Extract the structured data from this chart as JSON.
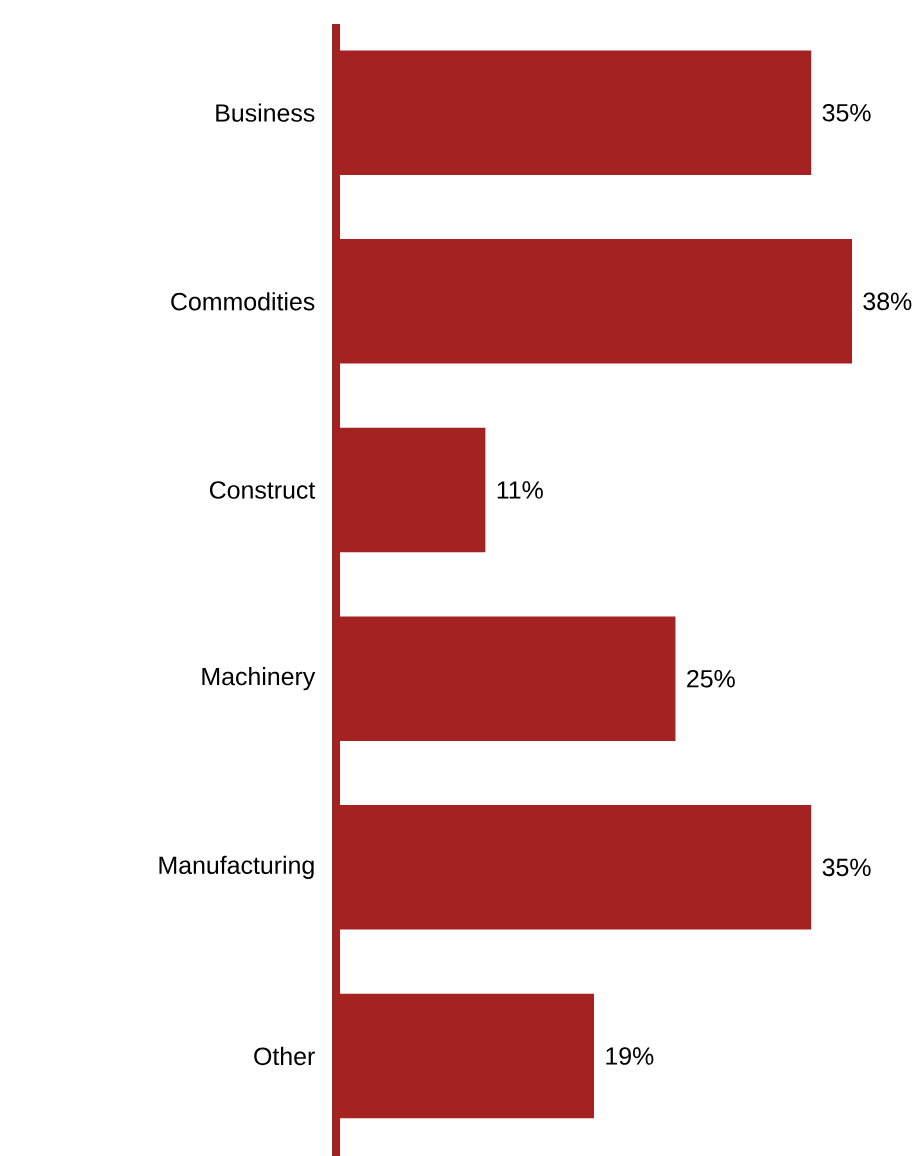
{
  "chart_data": {
    "type": "bar",
    "orientation": "horizontal",
    "categories": [
      "Business",
      "Commodities",
      "Construct",
      "Machinery",
      "Manufacturing",
      "Other"
    ],
    "values": [
      35,
      38,
      11,
      25,
      35,
      19
    ],
    "value_labels": [
      "35%",
      "38%",
      "11%",
      "25%",
      "35%",
      "19%"
    ],
    "color": "#a52222"
  }
}
